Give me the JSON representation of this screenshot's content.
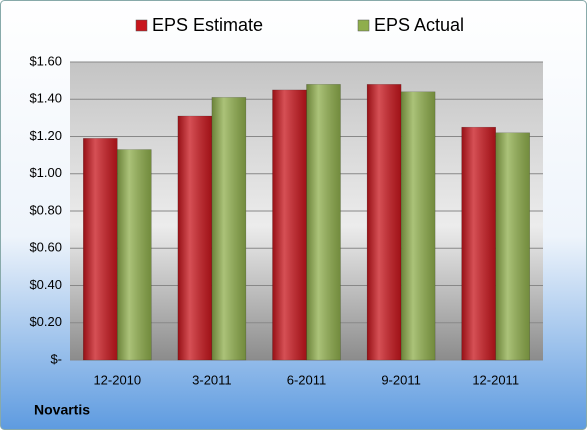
{
  "chart_data": {
    "type": "bar",
    "categories": [
      "12-2010",
      "3-2011",
      "6-2011",
      "9-2011",
      "12-2011"
    ],
    "series": [
      {
        "name": "EPS Estimate",
        "color": "#c8161d",
        "values": [
          1.19,
          1.31,
          1.45,
          1.48,
          1.25
        ]
      },
      {
        "name": "EPS Actual",
        "color": "#8fae4c",
        "values": [
          1.13,
          1.41,
          1.48,
          1.44,
          1.22
        ]
      }
    ],
    "ylim": [
      0,
      1.6
    ],
    "yticks": [
      {
        "value": 0,
        "label": "$-"
      },
      {
        "value": 0.2,
        "label": "$0.20"
      },
      {
        "value": 0.4,
        "label": "$0.40"
      },
      {
        "value": 0.6,
        "label": "$0.60"
      },
      {
        "value": 0.8,
        "label": "$0.80"
      },
      {
        "value": 1.0,
        "label": "$1.00"
      },
      {
        "value": 1.2,
        "label": "$1.20"
      },
      {
        "value": 1.4,
        "label": "$1.40"
      },
      {
        "value": 1.6,
        "label": "$1.60"
      }
    ],
    "grid": true,
    "legend": "top",
    "annotation": "Novartis"
  }
}
